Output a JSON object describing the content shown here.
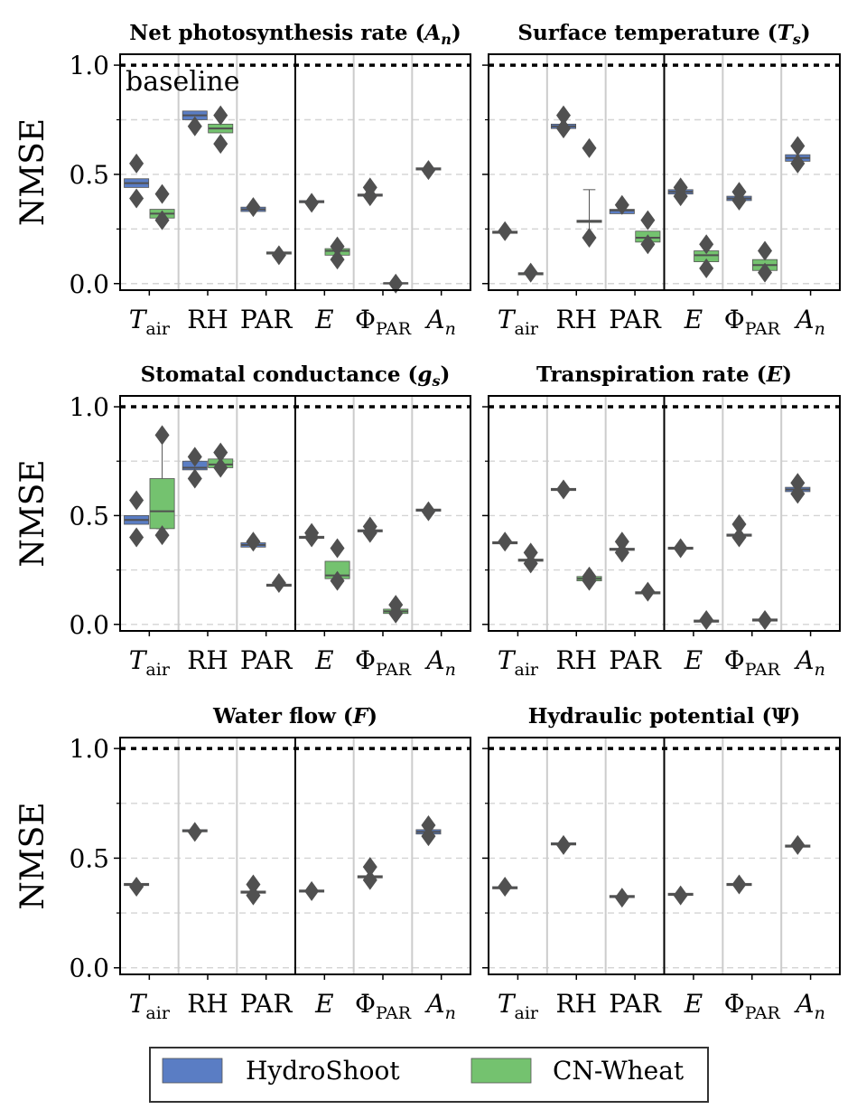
{
  "colors": {
    "hydroshoot": "#5a7dc4",
    "cnwheat": "#74c26f",
    "outlier": "#505050",
    "median": "#505050",
    "grid": "#d4d4d4",
    "separator": "#cccccc",
    "baseline": "#000000"
  },
  "figure": {
    "ylabel": "NMSE",
    "baseline_label": "baseline",
    "legend": [
      {
        "name": "HydroShoot",
        "color_key": "hydroshoot"
      },
      {
        "name": "CN-Wheat",
        "color_key": "cnwheat"
      }
    ]
  },
  "chart_data": [
    {
      "type": "box",
      "title_main": "Net photosynthesis rate (",
      "title_sym": "A",
      "title_sub": "n",
      "title_end": ")",
      "ylim": [
        -0.03,
        1.05
      ],
      "yticks": [
        "0.0",
        "0.5",
        "1.0"
      ],
      "baseline": 1.0,
      "show_baseline_label": true,
      "groups": [
        {
          "tick_main": "T",
          "tick_sub": "air",
          "italic": true,
          "hydroshoot": {
            "q1": 0.44,
            "med": 0.46,
            "q3": 0.48,
            "fliers": [
              0.55,
              0.39
            ]
          },
          "cnwheat": {
            "q1": 0.3,
            "med": 0.32,
            "q3": 0.34,
            "fliers": [
              0.41,
              0.29
            ]
          }
        },
        {
          "tick_main": "RH",
          "tick_sub": "",
          "italic": false,
          "hydroshoot": {
            "q1": 0.75,
            "med": 0.77,
            "q3": 0.79,
            "fliers": [
              0.72
            ]
          },
          "cnwheat": {
            "q1": 0.69,
            "med": 0.71,
            "q3": 0.73,
            "fliers": [
              0.77,
              0.64
            ]
          }
        },
        {
          "tick_main": "PAR",
          "tick_sub": "",
          "italic": false,
          "hydroshoot": {
            "q1": 0.33,
            "med": 0.34,
            "q3": 0.35,
            "fliers": [
              0.35
            ]
          },
          "cnwheat": {
            "q1": 0.135,
            "med": 0.14,
            "q3": 0.145,
            "fliers": [
              0.13
            ]
          }
        },
        {
          "tick_main": "E",
          "tick_sub": "",
          "italic": true,
          "hydroshoot": {
            "q1": 0.37,
            "med": 0.375,
            "q3": 0.38,
            "fliers": [
              0.37
            ]
          },
          "cnwheat": {
            "q1": 0.13,
            "med": 0.15,
            "q3": 0.16,
            "fliers": [
              0.17,
              0.11
            ]
          }
        },
        {
          "tick_main": "Φ",
          "tick_sub": "PAR",
          "italic": false,
          "hydroshoot": {
            "q1": 0.4,
            "med": 0.405,
            "q3": 0.41,
            "fliers": [
              0.44,
              0.4
            ]
          },
          "cnwheat": {
            "q1": 0.0,
            "med": 0.002,
            "q3": 0.004,
            "fliers": [
              0.0
            ]
          }
        },
        {
          "tick_main": "A",
          "tick_sub": "n",
          "italic": true,
          "hydroshoot": {
            "q1": 0.52,
            "med": 0.525,
            "q3": 0.53,
            "fliers": [
              0.52
            ]
          },
          "cnwheat": null
        }
      ]
    },
    {
      "type": "box",
      "title_main": "Surface temperature (",
      "title_sym": "T",
      "title_sub": "s",
      "title_end": ")",
      "ylim": [
        -0.03,
        1.05
      ],
      "yticks": [
        "0.0",
        "0.5",
        "1.0"
      ],
      "baseline": 1.0,
      "show_baseline_label": false,
      "groups": [
        {
          "tick_main": "T",
          "tick_sub": "air",
          "italic": true,
          "hydroshoot": {
            "q1": 0.23,
            "med": 0.235,
            "q3": 0.24,
            "fliers": [
              0.24
            ]
          },
          "cnwheat": {
            "q1": 0.04,
            "med": 0.045,
            "q3": 0.05,
            "fliers": [
              0.05
            ]
          }
        },
        {
          "tick_main": "RH",
          "tick_sub": "",
          "italic": false,
          "hydroshoot": {
            "q1": 0.71,
            "med": 0.72,
            "q3": 0.73,
            "fliers": [
              0.77,
              0.71
            ]
          },
          "cnwheat": {
            "q1": 0.28,
            "med": 0.285,
            "q3": 0.29,
            "whislo": 0.21,
            "whishi": 0.43,
            "fliers": [
              0.62,
              0.21
            ]
          }
        },
        {
          "tick_main": "PAR",
          "tick_sub": "",
          "italic": false,
          "hydroshoot": {
            "q1": 0.32,
            "med": 0.335,
            "q3": 0.34,
            "fliers": [
              0.36
            ]
          },
          "cnwheat": {
            "q1": 0.19,
            "med": 0.21,
            "q3": 0.24,
            "fliers": [
              0.29,
              0.18
            ]
          }
        },
        {
          "tick_main": "E",
          "tick_sub": "",
          "italic": true,
          "hydroshoot": {
            "q1": 0.41,
            "med": 0.42,
            "q3": 0.43,
            "fliers": [
              0.44,
              0.4
            ]
          },
          "cnwheat": {
            "q1": 0.1,
            "med": 0.13,
            "q3": 0.15,
            "fliers": [
              0.18,
              0.07
            ]
          }
        },
        {
          "tick_main": "Φ",
          "tick_sub": "PAR",
          "italic": false,
          "hydroshoot": {
            "q1": 0.38,
            "med": 0.39,
            "q3": 0.4,
            "fliers": [
              0.42,
              0.38
            ]
          },
          "cnwheat": {
            "q1": 0.06,
            "med": 0.085,
            "q3": 0.11,
            "fliers": [
              0.15,
              0.05
            ]
          }
        },
        {
          "tick_main": "A",
          "tick_sub": "n",
          "italic": true,
          "hydroshoot": {
            "q1": 0.56,
            "med": 0.575,
            "q3": 0.59,
            "fliers": [
              0.63,
              0.55
            ]
          },
          "cnwheat": null
        }
      ]
    },
    {
      "type": "box",
      "title_main": "Stomatal conductance (",
      "title_sym": "g",
      "title_sub": "s",
      "title_end": ")",
      "ylim": [
        -0.03,
        1.05
      ],
      "yticks": [
        "0.0",
        "0.5",
        "1.0"
      ],
      "baseline": 1.0,
      "show_baseline_label": false,
      "groups": [
        {
          "tick_main": "T",
          "tick_sub": "air",
          "italic": true,
          "hydroshoot": {
            "q1": 0.46,
            "med": 0.48,
            "q3": 0.5,
            "fliers": [
              0.57,
              0.4
            ]
          },
          "cnwheat": {
            "q1": 0.44,
            "med": 0.52,
            "q3": 0.67,
            "whislo": 0.44,
            "whishi": 0.87,
            "fliers": [
              0.87,
              0.41
            ]
          }
        },
        {
          "tick_main": "RH",
          "tick_sub": "",
          "italic": false,
          "hydroshoot": {
            "q1": 0.71,
            "med": 0.72,
            "q3": 0.75,
            "fliers": [
              0.77,
              0.67
            ]
          },
          "cnwheat": {
            "q1": 0.72,
            "med": 0.735,
            "q3": 0.76,
            "fliers": [
              0.79,
              0.72
            ]
          }
        },
        {
          "tick_main": "PAR",
          "tick_sub": "",
          "italic": false,
          "hydroshoot": {
            "q1": 0.355,
            "med": 0.365,
            "q3": 0.375,
            "fliers": [
              0.38
            ]
          },
          "cnwheat": {
            "q1": 0.175,
            "med": 0.18,
            "q3": 0.185,
            "fliers": [
              0.19
            ]
          }
        },
        {
          "tick_main": "E",
          "tick_sub": "",
          "italic": true,
          "hydroshoot": {
            "q1": 0.395,
            "med": 0.4,
            "q3": 0.405,
            "fliers": [
              0.42,
              0.4
            ]
          },
          "cnwheat": {
            "q1": 0.21,
            "med": 0.225,
            "q3": 0.29,
            "fliers": [
              0.35,
              0.2
            ]
          }
        },
        {
          "tick_main": "Φ",
          "tick_sub": "PAR",
          "italic": false,
          "hydroshoot": {
            "q1": 0.425,
            "med": 0.43,
            "q3": 0.435,
            "fliers": [
              0.45,
              0.42
            ]
          },
          "cnwheat": {
            "q1": 0.05,
            "med": 0.06,
            "q3": 0.07,
            "fliers": [
              0.09,
              0.05
            ]
          }
        },
        {
          "tick_main": "A",
          "tick_sub": "n",
          "italic": true,
          "hydroshoot": {
            "q1": 0.52,
            "med": 0.525,
            "q3": 0.53,
            "fliers": [
              0.52
            ]
          },
          "cnwheat": null
        }
      ]
    },
    {
      "type": "box",
      "title_main": "Transpiration rate (",
      "title_sym": "E",
      "title_sub": "",
      "title_end": ")",
      "ylim": [
        -0.03,
        1.05
      ],
      "yticks": [
        "0.0",
        "0.5",
        "1.0"
      ],
      "baseline": 1.0,
      "show_baseline_label": false,
      "groups": [
        {
          "tick_main": "T",
          "tick_sub": "air",
          "italic": true,
          "hydroshoot": {
            "q1": 0.37,
            "med": 0.375,
            "q3": 0.38,
            "fliers": [
              0.38
            ]
          },
          "cnwheat": {
            "q1": 0.29,
            "med": 0.295,
            "q3": 0.3,
            "fliers": [
              0.33,
              0.28
            ]
          }
        },
        {
          "tick_main": "RH",
          "tick_sub": "",
          "italic": false,
          "hydroshoot": {
            "q1": 0.615,
            "med": 0.62,
            "q3": 0.625,
            "fliers": [
              0.62
            ]
          },
          "cnwheat": {
            "q1": 0.2,
            "med": 0.21,
            "q3": 0.22,
            "fliers": [
              0.22,
              0.2
            ]
          }
        },
        {
          "tick_main": "PAR",
          "tick_sub": "",
          "italic": false,
          "hydroshoot": {
            "q1": 0.34,
            "med": 0.345,
            "q3": 0.35,
            "fliers": [
              0.38,
              0.33
            ]
          },
          "cnwheat": {
            "q1": 0.14,
            "med": 0.145,
            "q3": 0.15,
            "fliers": [
              0.15
            ]
          }
        },
        {
          "tick_main": "E",
          "tick_sub": "",
          "italic": true,
          "hydroshoot": {
            "q1": 0.345,
            "med": 0.35,
            "q3": 0.355,
            "fliers": [
              0.35
            ]
          },
          "cnwheat": {
            "q1": 0.01,
            "med": 0.015,
            "q3": 0.02,
            "fliers": [
              0.02
            ]
          }
        },
        {
          "tick_main": "Φ",
          "tick_sub": "PAR",
          "italic": false,
          "hydroshoot": {
            "q1": 0.405,
            "med": 0.41,
            "q3": 0.415,
            "fliers": [
              0.46,
              0.4
            ]
          },
          "cnwheat": {
            "q1": 0.015,
            "med": 0.02,
            "q3": 0.025,
            "fliers": [
              0.02
            ]
          }
        },
        {
          "tick_main": "A",
          "tick_sub": "n",
          "italic": true,
          "hydroshoot": {
            "q1": 0.61,
            "med": 0.62,
            "q3": 0.63,
            "fliers": [
              0.65,
              0.6
            ]
          },
          "cnwheat": null
        }
      ]
    },
    {
      "type": "box",
      "title_main": "Water flow (",
      "title_sym": "F",
      "title_sub": "",
      "title_end": ")",
      "ylim": [
        -0.03,
        1.05
      ],
      "yticks": [
        "0.0",
        "0.5",
        "1.0"
      ],
      "baseline": 1.0,
      "show_baseline_label": false,
      "groups": [
        {
          "tick_main": "T",
          "tick_sub": "air",
          "italic": true,
          "hydroshoot": {
            "q1": 0.375,
            "med": 0.38,
            "q3": 0.385,
            "fliers": [
              0.37
            ]
          },
          "cnwheat": null
        },
        {
          "tick_main": "RH",
          "tick_sub": "",
          "italic": false,
          "hydroshoot": {
            "q1": 0.62,
            "med": 0.625,
            "q3": 0.63,
            "fliers": [
              0.62
            ]
          },
          "cnwheat": null
        },
        {
          "tick_main": "PAR",
          "tick_sub": "",
          "italic": false,
          "hydroshoot": {
            "q1": 0.34,
            "med": 0.345,
            "q3": 0.35,
            "fliers": [
              0.38,
              0.33
            ]
          },
          "cnwheat": null
        },
        {
          "tick_main": "E",
          "tick_sub": "",
          "italic": true,
          "hydroshoot": {
            "q1": 0.345,
            "med": 0.35,
            "q3": 0.355,
            "fliers": [
              0.35
            ]
          },
          "cnwheat": null
        },
        {
          "tick_main": "Φ",
          "tick_sub": "PAR",
          "italic": false,
          "hydroshoot": {
            "q1": 0.41,
            "med": 0.415,
            "q3": 0.42,
            "fliers": [
              0.46,
              0.4
            ]
          },
          "cnwheat": null
        },
        {
          "tick_main": "A",
          "tick_sub": "n",
          "italic": true,
          "hydroshoot": {
            "q1": 0.61,
            "med": 0.62,
            "q3": 0.63,
            "fliers": [
              0.65,
              0.6
            ]
          },
          "cnwheat": null
        }
      ]
    },
    {
      "type": "box",
      "title_main": "Hydraulic potential (",
      "title_sym": "Ψ",
      "title_sub": "",
      "title_end": ")",
      "ylim": [
        -0.03,
        1.05
      ],
      "yticks": [
        "0.0",
        "0.5",
        "1.0"
      ],
      "baseline": 1.0,
      "show_baseline_label": false,
      "groups": [
        {
          "tick_main": "T",
          "tick_sub": "air",
          "italic": true,
          "hydroshoot": {
            "q1": 0.36,
            "med": 0.365,
            "q3": 0.37,
            "fliers": [
              0.37
            ]
          },
          "cnwheat": null
        },
        {
          "tick_main": "RH",
          "tick_sub": "",
          "italic": false,
          "hydroshoot": {
            "q1": 0.56,
            "med": 0.565,
            "q3": 0.57,
            "fliers": [
              0.56
            ]
          },
          "cnwheat": null
        },
        {
          "tick_main": "PAR",
          "tick_sub": "",
          "italic": false,
          "hydroshoot": {
            "q1": 0.32,
            "med": 0.325,
            "q3": 0.33,
            "fliers": [
              0.32
            ]
          },
          "cnwheat": null
        },
        {
          "tick_main": "E",
          "tick_sub": "",
          "italic": true,
          "hydroshoot": {
            "q1": 0.33,
            "med": 0.335,
            "q3": 0.34,
            "fliers": [
              0.33
            ]
          },
          "cnwheat": null
        },
        {
          "tick_main": "Φ",
          "tick_sub": "PAR",
          "italic": false,
          "hydroshoot": {
            "q1": 0.375,
            "med": 0.38,
            "q3": 0.385,
            "fliers": [
              0.38
            ]
          },
          "cnwheat": null
        },
        {
          "tick_main": "A",
          "tick_sub": "n",
          "italic": true,
          "hydroshoot": {
            "q1": 0.55,
            "med": 0.555,
            "q3": 0.56,
            "fliers": [
              0.56
            ]
          },
          "cnwheat": null
        }
      ]
    }
  ]
}
